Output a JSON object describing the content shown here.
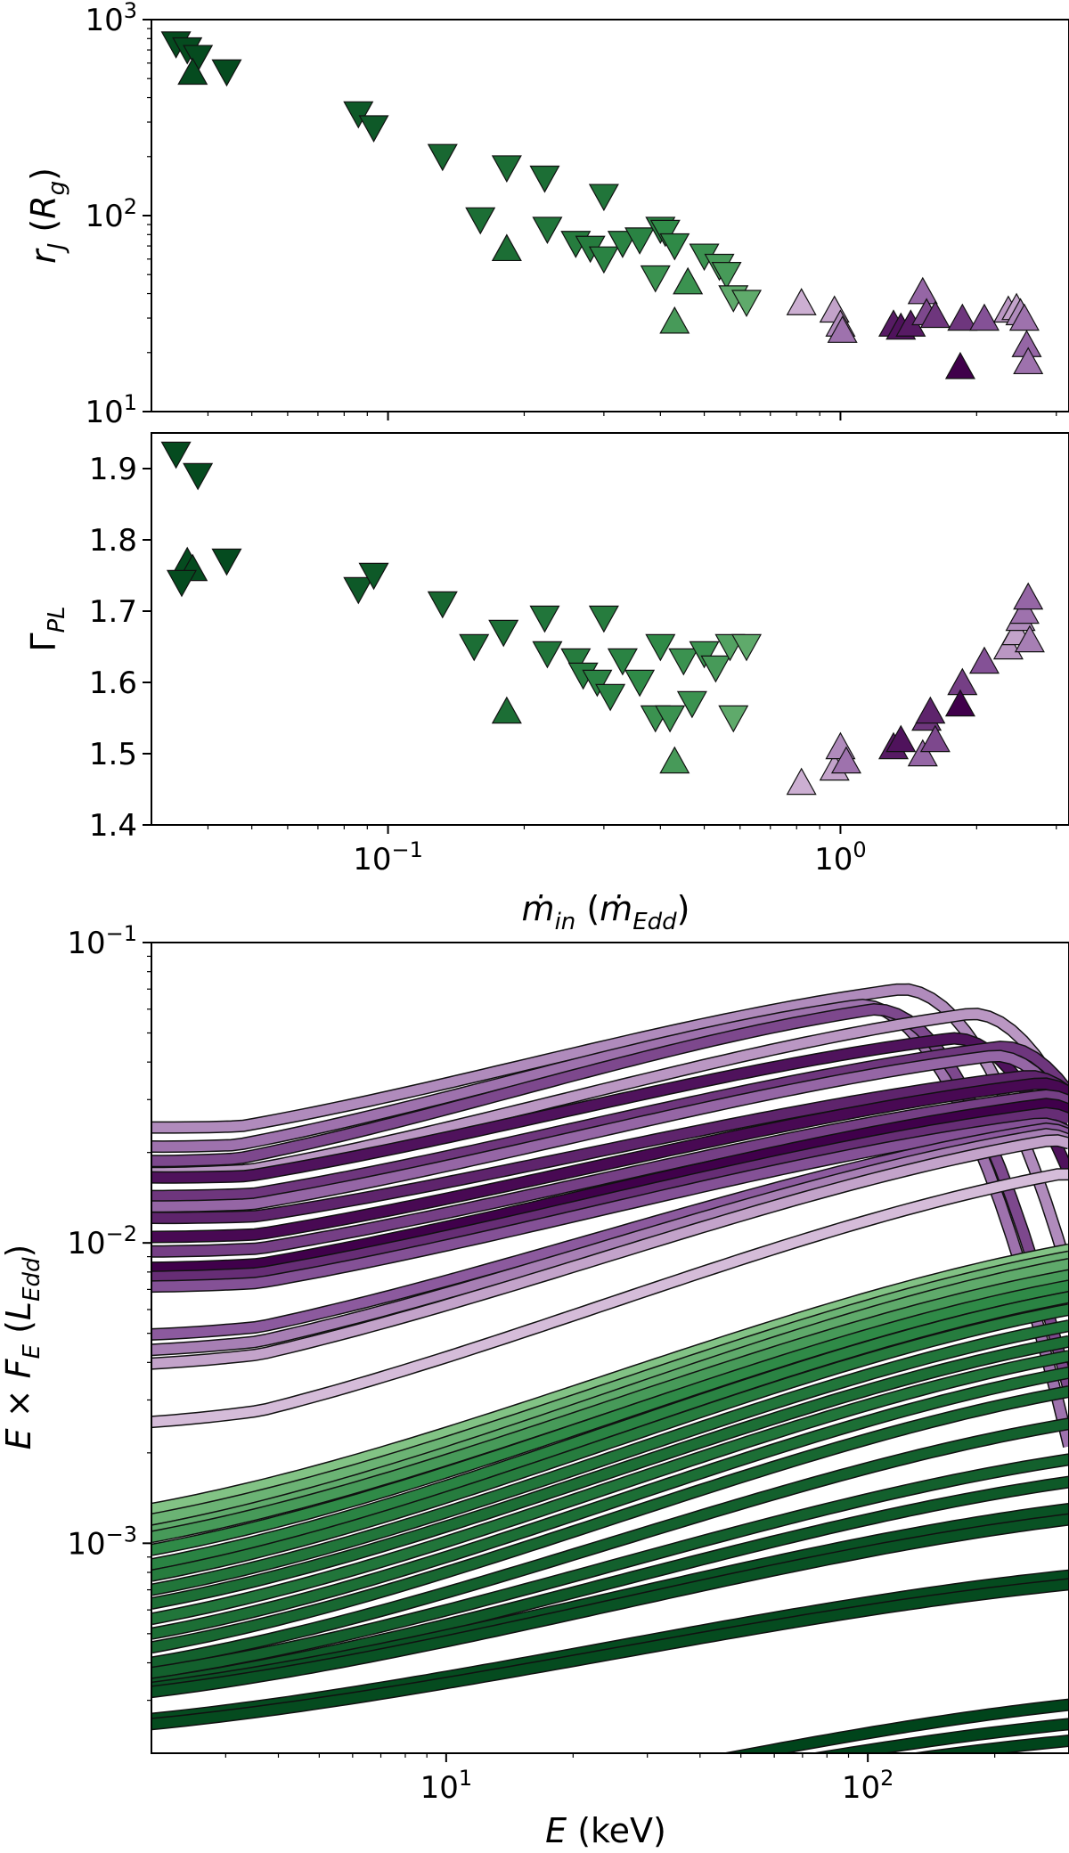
{
  "colors": {
    "green_dark": "#00441b",
    "green_mid": "#2f8a47",
    "green_light": "#a6dba0",
    "purple_dark": "#40004b",
    "purple_mid": "#8c5a9e",
    "purple_light": "#e7d4e8",
    "edge": "#111111"
  },
  "chart_data": [
    {
      "id": "rj",
      "type": "scatter",
      "xscale": "log",
      "yscale": "log",
      "xlim": [
        0.03,
        3.2
      ],
      "ylim": [
        10,
        1000
      ],
      "ylabel": "r_J (R_g)",
      "ytick_labels": [
        {
          "base": "10",
          "exp": "1",
          "value": 10
        },
        {
          "base": "10",
          "exp": "2",
          "value": 100
        },
        {
          "base": "10",
          "exp": "3",
          "value": 1000
        }
      ],
      "points": [
        {
          "x": 0.034,
          "y": 750,
          "m": "down",
          "c": 0.05
        },
        {
          "x": 0.036,
          "y": 700,
          "m": "down",
          "c": 0.05
        },
        {
          "x": 0.038,
          "y": 640,
          "m": "down",
          "c": 0.05
        },
        {
          "x": 0.037,
          "y": 540,
          "m": "up",
          "c": 0.05
        },
        {
          "x": 0.044,
          "y": 540,
          "m": "down",
          "c": 0.05
        },
        {
          "x": 0.086,
          "y": 330,
          "m": "down",
          "c": 0.15
        },
        {
          "x": 0.093,
          "y": 280,
          "m": "down",
          "c": 0.15
        },
        {
          "x": 0.132,
          "y": 200,
          "m": "down",
          "c": 0.25
        },
        {
          "x": 0.183,
          "y": 175,
          "m": "down",
          "c": 0.3
        },
        {
          "x": 0.222,
          "y": 155,
          "m": "down",
          "c": 0.3
        },
        {
          "x": 0.3,
          "y": 125,
          "m": "down",
          "c": 0.35
        },
        {
          "x": 0.16,
          "y": 95,
          "m": "down",
          "c": 0.3
        },
        {
          "x": 0.183,
          "y": 68,
          "m": "up",
          "c": 0.3
        },
        {
          "x": 0.225,
          "y": 85,
          "m": "down",
          "c": 0.35
        },
        {
          "x": 0.26,
          "y": 72,
          "m": "down",
          "c": 0.4
        },
        {
          "x": 0.28,
          "y": 68,
          "m": "down",
          "c": 0.4
        },
        {
          "x": 0.3,
          "y": 60,
          "m": "down",
          "c": 0.45
        },
        {
          "x": 0.33,
          "y": 72,
          "m": "down",
          "c": 0.45
        },
        {
          "x": 0.36,
          "y": 75,
          "m": "down",
          "c": 0.45
        },
        {
          "x": 0.4,
          "y": 85,
          "m": "down",
          "c": 0.45
        },
        {
          "x": 0.41,
          "y": 82,
          "m": "down",
          "c": 0.5
        },
        {
          "x": 0.43,
          "y": 70,
          "m": "down",
          "c": 0.5
        },
        {
          "x": 0.39,
          "y": 48,
          "m": "down",
          "c": 0.55
        },
        {
          "x": 0.43,
          "y": 29,
          "m": "up",
          "c": 0.6
        },
        {
          "x": 0.46,
          "y": 46,
          "m": "up",
          "c": 0.55
        },
        {
          "x": 0.5,
          "y": 62,
          "m": "down",
          "c": 0.55
        },
        {
          "x": 0.54,
          "y": 55,
          "m": "down",
          "c": 0.6
        },
        {
          "x": 0.56,
          "y": 50,
          "m": "down",
          "c": 0.6
        },
        {
          "x": 0.58,
          "y": 38,
          "m": "down",
          "c": 0.7
        },
        {
          "x": 0.62,
          "y": 36,
          "m": "down",
          "c": 0.7
        },
        {
          "x": 0.82,
          "y": 36,
          "m": "up",
          "c": 0.85
        },
        {
          "x": 0.97,
          "y": 33,
          "m": "up",
          "c": 0.8
        },
        {
          "x": 1.0,
          "y": 28,
          "m": "up",
          "c": 0.7
        },
        {
          "x": 1.01,
          "y": 26,
          "m": "up",
          "c": 0.6
        },
        {
          "x": 1.31,
          "y": 28,
          "m": "up",
          "c": 0.15
        },
        {
          "x": 1.36,
          "y": 27,
          "m": "up",
          "c": 0.1
        },
        {
          "x": 1.43,
          "y": 28,
          "m": "up",
          "c": 0.15
        },
        {
          "x": 1.52,
          "y": 41,
          "m": "up",
          "c": 0.55
        },
        {
          "x": 1.55,
          "y": 32,
          "m": "up",
          "c": 0.4
        },
        {
          "x": 1.62,
          "y": 31,
          "m": "up",
          "c": 0.3
        },
        {
          "x": 1.86,
          "y": 30,
          "m": "up",
          "c": 0.3
        },
        {
          "x": 1.84,
          "y": 17,
          "m": "up",
          "c": 0.0
        },
        {
          "x": 2.08,
          "y": 30,
          "m": "up",
          "c": 0.45
        },
        {
          "x": 2.35,
          "y": 33,
          "m": "up",
          "c": 0.75
        },
        {
          "x": 2.45,
          "y": 34,
          "m": "up",
          "c": 0.8
        },
        {
          "x": 2.5,
          "y": 32,
          "m": "up",
          "c": 0.7
        },
        {
          "x": 2.55,
          "y": 30,
          "m": "up",
          "c": 0.6
        },
        {
          "x": 2.58,
          "y": 22,
          "m": "up",
          "c": 0.55
        },
        {
          "x": 2.6,
          "y": 18,
          "m": "up",
          "c": 0.6
        }
      ]
    },
    {
      "id": "gamma",
      "type": "scatter",
      "xscale": "log",
      "yscale": "linear",
      "xlim": [
        0.03,
        3.2
      ],
      "ylim": [
        1.4,
        1.95
      ],
      "ylabel": "Γ_PL",
      "xlabel": "ṁ_in (ṁ_Edd)",
      "ytick_labels": [
        "1.4",
        "1.5",
        "1.6",
        "1.7",
        "1.8",
        "1.9"
      ],
      "xtick_labels": [
        {
          "base": "10",
          "exp": "−1",
          "value": 0.1
        },
        {
          "base": "10",
          "exp": "0",
          "value": 1
        }
      ],
      "points": [
        {
          "x": 0.034,
          "y": 1.92,
          "m": "down",
          "c": 0.05
        },
        {
          "x": 0.038,
          "y": 1.89,
          "m": "down",
          "c": 0.05
        },
        {
          "x": 0.036,
          "y": 1.77,
          "m": "up",
          "c": 0.05
        },
        {
          "x": 0.037,
          "y": 1.76,
          "m": "up",
          "c": 0.05
        },
        {
          "x": 0.035,
          "y": 1.74,
          "m": "down",
          "c": 0.05
        },
        {
          "x": 0.044,
          "y": 1.77,
          "m": "down",
          "c": 0.05
        },
        {
          "x": 0.086,
          "y": 1.73,
          "m": "down",
          "c": 0.15
        },
        {
          "x": 0.093,
          "y": 1.75,
          "m": "down",
          "c": 0.15
        },
        {
          "x": 0.132,
          "y": 1.71,
          "m": "down",
          "c": 0.25
        },
        {
          "x": 0.155,
          "y": 1.65,
          "m": "down",
          "c": 0.3
        },
        {
          "x": 0.18,
          "y": 1.67,
          "m": "down",
          "c": 0.3
        },
        {
          "x": 0.183,
          "y": 1.56,
          "m": "up",
          "c": 0.3
        },
        {
          "x": 0.222,
          "y": 1.69,
          "m": "down",
          "c": 0.35
        },
        {
          "x": 0.225,
          "y": 1.64,
          "m": "down",
          "c": 0.35
        },
        {
          "x": 0.26,
          "y": 1.63,
          "m": "down",
          "c": 0.4
        },
        {
          "x": 0.27,
          "y": 1.61,
          "m": "down",
          "c": 0.4
        },
        {
          "x": 0.29,
          "y": 1.6,
          "m": "down",
          "c": 0.45
        },
        {
          "x": 0.3,
          "y": 1.69,
          "m": "down",
          "c": 0.4
        },
        {
          "x": 0.31,
          "y": 1.58,
          "m": "down",
          "c": 0.45
        },
        {
          "x": 0.33,
          "y": 1.63,
          "m": "down",
          "c": 0.45
        },
        {
          "x": 0.36,
          "y": 1.6,
          "m": "down",
          "c": 0.5
        },
        {
          "x": 0.39,
          "y": 1.55,
          "m": "down",
          "c": 0.55
        },
        {
          "x": 0.4,
          "y": 1.65,
          "m": "down",
          "c": 0.5
        },
        {
          "x": 0.42,
          "y": 1.55,
          "m": "down",
          "c": 0.55
        },
        {
          "x": 0.43,
          "y": 1.49,
          "m": "up",
          "c": 0.6
        },
        {
          "x": 0.45,
          "y": 1.63,
          "m": "down",
          "c": 0.55
        },
        {
          "x": 0.47,
          "y": 1.57,
          "m": "down",
          "c": 0.55
        },
        {
          "x": 0.5,
          "y": 1.64,
          "m": "down",
          "c": 0.55
        },
        {
          "x": 0.53,
          "y": 1.62,
          "m": "down",
          "c": 0.6
        },
        {
          "x": 0.57,
          "y": 1.65,
          "m": "down",
          "c": 0.65
        },
        {
          "x": 0.58,
          "y": 1.55,
          "m": "down",
          "c": 0.7
        },
        {
          "x": 0.62,
          "y": 1.65,
          "m": "down",
          "c": 0.7
        },
        {
          "x": 0.82,
          "y": 1.46,
          "m": "up",
          "c": 0.85
        },
        {
          "x": 0.97,
          "y": 1.48,
          "m": "up",
          "c": 0.8
        },
        {
          "x": 1.0,
          "y": 1.51,
          "m": "up",
          "c": 0.7
        },
        {
          "x": 1.03,
          "y": 1.49,
          "m": "up",
          "c": 0.6
        },
        {
          "x": 1.31,
          "y": 1.51,
          "m": "up",
          "c": 0.15
        },
        {
          "x": 1.36,
          "y": 1.52,
          "m": "up",
          "c": 0.1
        },
        {
          "x": 1.52,
          "y": 1.5,
          "m": "up",
          "c": 0.55
        },
        {
          "x": 1.55,
          "y": 1.55,
          "m": "up",
          "c": 0.3
        },
        {
          "x": 1.62,
          "y": 1.52,
          "m": "up",
          "c": 0.4
        },
        {
          "x": 1.58,
          "y": 1.56,
          "m": "up",
          "c": 0.2
        },
        {
          "x": 1.86,
          "y": 1.6,
          "m": "up",
          "c": 0.35
        },
        {
          "x": 1.84,
          "y": 1.57,
          "m": "up",
          "c": 0.0
        },
        {
          "x": 2.08,
          "y": 1.63,
          "m": "up",
          "c": 0.45
        },
        {
          "x": 2.35,
          "y": 1.65,
          "m": "up",
          "c": 0.75
        },
        {
          "x": 2.45,
          "y": 1.67,
          "m": "up",
          "c": 0.8
        },
        {
          "x": 2.5,
          "y": 1.69,
          "m": "up",
          "c": 0.7
        },
        {
          "x": 2.55,
          "y": 1.7,
          "m": "up",
          "c": 0.6
        },
        {
          "x": 2.6,
          "y": 1.72,
          "m": "up",
          "c": 0.55
        },
        {
          "x": 2.62,
          "y": 1.66,
          "m": "up",
          "c": 0.65
        }
      ]
    },
    {
      "id": "spectra",
      "type": "line",
      "xscale": "log",
      "yscale": "log",
      "xlim": [
        2,
        300
      ],
      "ylim": [
        0.0002,
        0.1
      ],
      "xlabel": "E (keV)",
      "ylabel": "E × F_E (L_Edd)",
      "ytick_labels": [
        {
          "base": "10",
          "exp": "−3",
          "value": 0.001
        },
        {
          "base": "10",
          "exp": "−2",
          "value": 0.01
        },
        {
          "base": "10",
          "exp": "−1",
          "value": 0.1
        }
      ],
      "xtick_labels": [
        {
          "base": "10",
          "exp": "1",
          "value": 10
        },
        {
          "base": "10",
          "exp": "2",
          "value": 100
        }
      ],
      "series": [
        {
          "family": "purple",
          "c": 0.7,
          "norm": 0.02,
          "start": 0.022,
          "peak": 0.07,
          "Ec": 150
        },
        {
          "family": "purple",
          "c": 0.6,
          "norm": 0.019,
          "start": 0.019,
          "peak": 0.062,
          "Ec": 120
        },
        {
          "family": "purple",
          "c": 0.4,
          "norm": 0.017,
          "start": 0.017,
          "peak": 0.06,
          "Ec": 130
        },
        {
          "family": "purple",
          "c": 0.75,
          "norm": 0.015,
          "start": 0.0155,
          "peak": 0.058,
          "Ec": 220
        },
        {
          "family": "purple",
          "c": 0.1,
          "norm": 0.015,
          "start": 0.015,
          "peak": 0.048,
          "Ec": 200
        },
        {
          "family": "purple",
          "c": 0.3,
          "norm": 0.013,
          "start": 0.013,
          "peak": 0.045,
          "Ec": 260
        },
        {
          "family": "purple",
          "c": 0.55,
          "norm": 0.012,
          "start": 0.012,
          "peak": 0.042,
          "Ec": 250
        },
        {
          "family": "purple",
          "c": 0.2,
          "norm": 0.011,
          "start": 0.011,
          "peak": 0.036,
          "Ec": 300
        },
        {
          "family": "purple",
          "c": 0.05,
          "norm": 0.0095,
          "start": 0.0095,
          "peak": 0.034,
          "Ec": 320
        },
        {
          "family": "purple",
          "c": 0.35,
          "norm": 0.0085,
          "start": 0.0085,
          "peak": 0.031,
          "Ec": 330
        },
        {
          "family": "purple",
          "c": 0.0,
          "norm": 0.0075,
          "start": 0.0075,
          "peak": 0.029,
          "Ec": 330
        },
        {
          "family": "purple",
          "c": 0.25,
          "norm": 0.007,
          "start": 0.007,
          "peak": 0.027,
          "Ec": 330
        },
        {
          "family": "purple",
          "c": 0.45,
          "norm": 0.0065,
          "start": 0.0065,
          "peak": 0.025,
          "Ec": 320
        },
        {
          "family": "purple",
          "c": 0.5,
          "norm": 0.0045,
          "start": 0.0045,
          "peak": 0.024,
          "Ec": 330
        },
        {
          "family": "purple",
          "c": 0.65,
          "norm": 0.004,
          "start": 0.004,
          "peak": 0.023,
          "Ec": 330
        },
        {
          "family": "purple",
          "c": 0.8,
          "norm": 0.0036,
          "start": 0.0036,
          "peak": 0.022,
          "Ec": 340
        },
        {
          "family": "purple",
          "c": 0.9,
          "norm": 0.0023,
          "start": 0.0023,
          "peak": 0.017,
          "Ec": 360
        },
        {
          "family": "green",
          "c": 0.85,
          "norm": 0.0013,
          "start": 0.0013,
          "peak": 0.0095,
          "Ec": 600
        },
        {
          "family": "green",
          "c": 0.75,
          "norm": 0.0012,
          "start": 0.0012,
          "peak": 0.009,
          "Ec": 600
        },
        {
          "family": "green",
          "c": 0.7,
          "norm": 0.0011,
          "start": 0.0011,
          "peak": 0.0085,
          "Ec": 600
        },
        {
          "family": "green",
          "c": 0.6,
          "norm": 0.001,
          "start": 0.00105,
          "peak": 0.0078,
          "Ec": 600
        },
        {
          "family": "green",
          "c": 0.5,
          "norm": 0.0009,
          "start": 0.00095,
          "peak": 0.0072,
          "Ec": 600
        },
        {
          "family": "green",
          "c": 0.45,
          "norm": 0.00082,
          "start": 0.00085,
          "peak": 0.0066,
          "Ec": 600
        },
        {
          "family": "green",
          "c": 0.4,
          "norm": 0.00075,
          "start": 0.00078,
          "peak": 0.006,
          "Ec": 600
        },
        {
          "family": "green",
          "c": 0.35,
          "norm": 0.00068,
          "start": 0.0007,
          "peak": 0.0053,
          "Ec": 600
        },
        {
          "family": "green",
          "c": 0.3,
          "norm": 0.00062,
          "start": 0.00063,
          "peak": 0.0047,
          "Ec": 600
        },
        {
          "family": "green",
          "c": 0.35,
          "norm": 0.00055,
          "start": 0.00056,
          "peak": 0.0042,
          "Ec": 600
        },
        {
          "family": "green",
          "c": 0.3,
          "norm": 0.0005,
          "start": 0.0005,
          "peak": 0.0037,
          "Ec": 600
        },
        {
          "family": "green",
          "c": 0.25,
          "norm": 0.00045,
          "start": 0.00045,
          "peak": 0.0032,
          "Ec": 600
        },
        {
          "family": "green",
          "c": 0.2,
          "norm": 0.0004,
          "start": 0.0004,
          "peak": 0.0025,
          "Ec": 600
        },
        {
          "family": "green",
          "c": 0.2,
          "norm": 0.00037,
          "start": 0.00037,
          "peak": 0.0019,
          "Ec": 600
        },
        {
          "family": "green",
          "c": 0.15,
          "norm": 0.00034,
          "start": 0.00034,
          "peak": 0.0016,
          "Ec": 600
        },
        {
          "family": "green",
          "c": 0.1,
          "norm": 0.00033,
          "start": 0.00033,
          "peak": 0.0013,
          "Ec": 600
        },
        {
          "family": "green",
          "c": 0.1,
          "norm": 0.00032,
          "start": 0.00032,
          "peak": 0.0012,
          "Ec": 600
        },
        {
          "family": "green",
          "c": 0.05,
          "norm": 0.00026,
          "start": 0.00026,
          "peak": 0.00078,
          "Ec": 600
        },
        {
          "family": "green",
          "c": 0.05,
          "norm": 0.00025,
          "start": 0.00025,
          "peak": 0.00073,
          "Ec": 600
        },
        {
          "family": "green",
          "c": 0.0,
          "norm": 9e-05,
          "start": 9e-05,
          "peak": 0.00029,
          "Ec": 600
        },
        {
          "family": "green",
          "c": 0.0,
          "norm": 8.5e-05,
          "start": 8.5e-05,
          "peak": 0.00025,
          "Ec": 600
        },
        {
          "family": "green",
          "c": 0.0,
          "norm": 8e-05,
          "start": 8e-05,
          "peak": 0.00022,
          "Ec": 600
        }
      ]
    }
  ]
}
